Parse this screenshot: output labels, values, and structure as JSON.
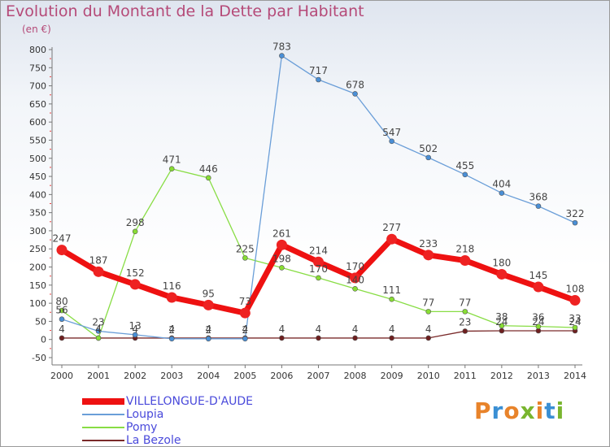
{
  "title": "Evolution du Montant de la Dette par Habitant",
  "unit_label": "(en €)",
  "brand": "Proxiti",
  "chart_data": {
    "type": "line",
    "title": "Evolution du Montant de la Dette par Habitant",
    "subtitle": "(en €)",
    "x": [
      "2000",
      "2001",
      "2002",
      "2003",
      "2004",
      "2005",
      "2006",
      "2007",
      "2008",
      "2009",
      "2010",
      "2011",
      "2012",
      "2013",
      "2014"
    ],
    "y_ticks": [
      "800",
      "750",
      "700",
      "650",
      "600",
      "550",
      "500",
      "450",
      "400",
      "350",
      "300",
      "250",
      "200",
      "150",
      "100",
      "50",
      "0",
      "-50"
    ],
    "ylim": [
      -50,
      800
    ],
    "grid": false,
    "legend_position": "bottom-left",
    "series": [
      {
        "name": "VILLELONGUE-D'AUDE",
        "color": "#ee1111",
        "marker_fill": "#ee2222",
        "width": 7,
        "values": [
          247,
          187,
          152,
          116,
          95,
          73,
          261,
          214,
          170,
          277,
          233,
          218,
          180,
          145,
          108
        ]
      },
      {
        "name": "Loupia",
        "color": "#6a9ed8",
        "marker_fill": "#4a8fd6",
        "width": 1.3,
        "values": [
          56,
          23,
          13,
          2,
          2,
          2,
          783,
          717,
          678,
          547,
          502,
          455,
          404,
          368,
          322
        ]
      },
      {
        "name": "Pomy",
        "color": "#88dd44",
        "marker_fill": "#88dd33",
        "width": 1.3,
        "values": [
          80,
          4,
          298,
          471,
          446,
          225,
          198,
          170,
          140,
          111,
          77,
          77,
          38,
          36,
          33
        ]
      },
      {
        "name": "La Bezole",
        "color": "#7a2a2a",
        "marker_fill": "#6e1f1f",
        "width": 1.3,
        "values": [
          4,
          4,
          4,
          4,
          4,
          4,
          4,
          4,
          4,
          4,
          4,
          23,
          24,
          24,
          24
        ]
      }
    ]
  }
}
